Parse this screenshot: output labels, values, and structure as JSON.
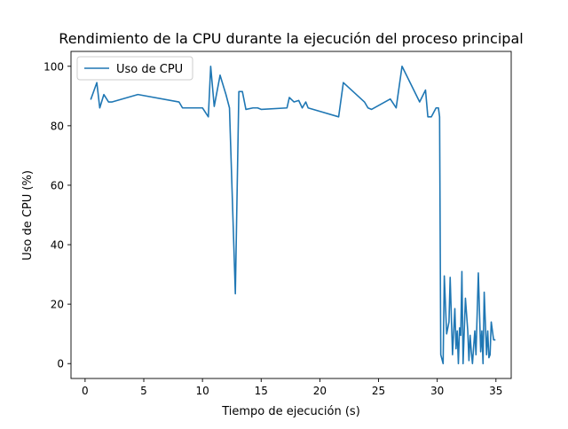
{
  "chart_data": {
    "type": "line",
    "title": "Rendimiento de la CPU durante la ejecución del proceso principal",
    "xlabel": "Tiempo de ejecución (s)",
    "ylabel": "Uso de CPU (%)",
    "xlim": [
      -1.2,
      36.3
    ],
    "ylim": [
      -5,
      105
    ],
    "xticks": [
      0,
      5,
      10,
      15,
      20,
      25,
      30,
      35
    ],
    "yticks": [
      0,
      20,
      40,
      60,
      80,
      100
    ],
    "grid": false,
    "legend_position": "upper-left",
    "colors": {
      "line": "#1f77b4",
      "axes": "#000000",
      "background": "#ffffff"
    },
    "series": [
      {
        "name": "Uso de CPU",
        "x": [
          0.5,
          1.0,
          1.25,
          1.6,
          2.0,
          2.3,
          4.5,
          8.0,
          8.3,
          9.0,
          10.0,
          10.5,
          10.7,
          11.0,
          11.5,
          12.0,
          12.3,
          12.8,
          13.1,
          13.4,
          13.7,
          14.3,
          14.7,
          15.0,
          17.2,
          17.4,
          17.8,
          18.2,
          18.5,
          18.8,
          19.0,
          21.6,
          22.0,
          23.8,
          24.1,
          24.4,
          26.0,
          26.5,
          27.0,
          28.5,
          29.0,
          29.2,
          29.5,
          29.9,
          30.1,
          30.2,
          30.3,
          30.5,
          30.6,
          30.8,
          31.0,
          31.1,
          31.3,
          31.5,
          31.6,
          31.7,
          31.8,
          31.9,
          32.0,
          32.1,
          32.2,
          32.4,
          32.6,
          32.7,
          32.8,
          32.9,
          33.0,
          33.2,
          33.3,
          33.5,
          33.7,
          33.8,
          33.9,
          34.0,
          34.2,
          34.3,
          34.4,
          34.5,
          34.6,
          34.8,
          34.9
        ],
        "y": [
          89,
          94.5,
          86,
          90.5,
          88,
          88,
          90.5,
          88,
          86,
          86,
          86,
          83,
          100,
          86.5,
          97,
          90.5,
          86,
          23.5,
          91.5,
          91.5,
          85.5,
          86,
          86,
          85.5,
          86,
          89.5,
          88,
          88.5,
          86,
          88,
          86,
          83,
          94.5,
          88,
          86,
          85.5,
          89,
          86,
          100,
          88,
          92,
          83,
          83,
          86,
          86,
          83,
          3,
          0,
          29.5,
          10,
          14,
          29,
          3,
          18.5,
          5,
          11,
          0,
          12,
          9.5,
          31,
          0,
          22,
          11,
          1,
          9.5,
          4,
          0,
          11,
          3,
          30.5,
          4,
          11,
          0,
          24,
          3,
          11,
          2,
          3,
          14,
          8,
          8
        ]
      }
    ]
  }
}
